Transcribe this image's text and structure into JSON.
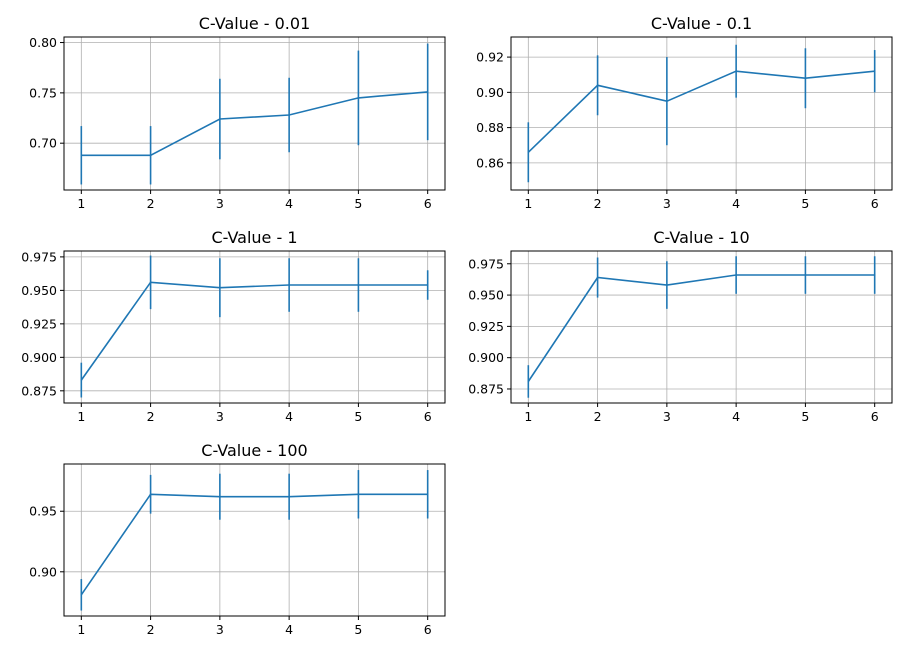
{
  "chart_data": [
    {
      "type": "line",
      "title": "C-Value - 0.01",
      "x": [
        1,
        2,
        3,
        4,
        5,
        6
      ],
      "y": [
        0.688,
        0.688,
        0.724,
        0.728,
        0.745,
        0.751
      ],
      "yerr": [
        0.029,
        0.029,
        0.04,
        0.037,
        0.047,
        0.048
      ],
      "xticks": [
        "1",
        "2",
        "3",
        "4",
        "5",
        "6"
      ],
      "yticks": [
        "0.70",
        "0.75",
        "0.80"
      ],
      "xlim": [
        0.75,
        6.25
      ],
      "ylim": [
        0.6535,
        0.8055
      ],
      "grid": true
    },
    {
      "type": "line",
      "title": "C-Value - 0.1",
      "x": [
        1,
        2,
        3,
        4,
        5,
        6
      ],
      "y": [
        0.866,
        0.904,
        0.895,
        0.912,
        0.908,
        0.912
      ],
      "yerr": [
        0.017,
        0.017,
        0.025,
        0.015,
        0.017,
        0.012
      ],
      "xticks": [
        "1",
        "2",
        "3",
        "4",
        "5",
        "6"
      ],
      "yticks": [
        "0.86",
        "0.88",
        "0.90",
        "0.92"
      ],
      "xlim": [
        0.75,
        6.25
      ],
      "ylim": [
        0.8446,
        0.9314
      ],
      "grid": true
    },
    {
      "type": "line",
      "title": "C-Value - 1",
      "x": [
        1,
        2,
        3,
        4,
        5,
        6
      ],
      "y": [
        0.883,
        0.956,
        0.952,
        0.954,
        0.954,
        0.954
      ],
      "yerr": [
        0.013,
        0.02,
        0.022,
        0.02,
        0.02,
        0.011
      ],
      "xticks": [
        "1",
        "2",
        "3",
        "4",
        "5",
        "6"
      ],
      "yticks": [
        "0.875",
        "0.900",
        "0.925",
        "0.950",
        "0.975"
      ],
      "xlim": [
        0.75,
        6.25
      ],
      "ylim": [
        0.8659,
        0.9794
      ],
      "grid": true
    },
    {
      "type": "line",
      "title": "C-Value - 10",
      "x": [
        1,
        2,
        3,
        4,
        5,
        6
      ],
      "y": [
        0.881,
        0.964,
        0.958,
        0.966,
        0.966,
        0.966
      ],
      "yerr": [
        0.013,
        0.016,
        0.019,
        0.015,
        0.015,
        0.015
      ],
      "xticks": [
        "1",
        "2",
        "3",
        "4",
        "5",
        "6"
      ],
      "yticks": [
        "0.875",
        "0.900",
        "0.925",
        "0.950",
        "0.975"
      ],
      "xlim": [
        0.75,
        6.25
      ],
      "ylim": [
        0.8638,
        0.9852
      ],
      "grid": true
    },
    {
      "type": "line",
      "title": "C-Value - 100",
      "x": [
        1,
        2,
        3,
        4,
        5,
        6
      ],
      "y": [
        0.881,
        0.964,
        0.962,
        0.962,
        0.964,
        0.964
      ],
      "yerr": [
        0.013,
        0.016,
        0.019,
        0.019,
        0.02,
        0.02
      ],
      "xticks": [
        "1",
        "2",
        "3",
        "4",
        "5",
        "6"
      ],
      "yticks": [
        "0.90",
        "0.95"
      ],
      "xlim": [
        0.75,
        6.25
      ],
      "ylim": [
        0.8635,
        0.989
      ],
      "grid": true
    }
  ],
  "colors": {
    "series": "#1f77b4",
    "grid": "#b0b0b0",
    "axes": "#000000"
  }
}
